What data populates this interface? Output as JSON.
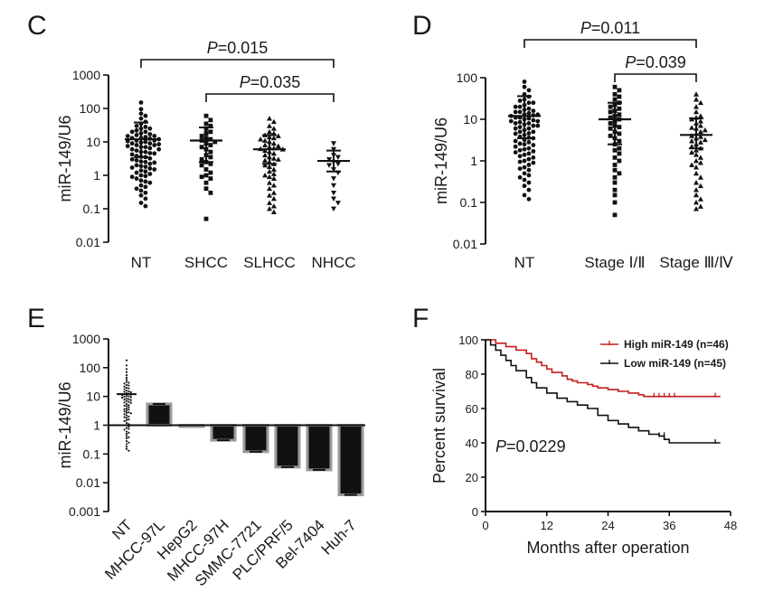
{
  "chart_data": [
    {
      "panel": "C",
      "type": "scatter",
      "ylabel": "miR-149/U6",
      "yscale": "log",
      "ylim": [
        0.01,
        1000
      ],
      "yticks": [
        "0.01",
        "0.1",
        "1",
        "10",
        "100",
        "1000"
      ],
      "categories": [
        "NT",
        "SHCC",
        "SLHCC",
        "NHCC"
      ],
      "marker_shapes": [
        "circle",
        "square",
        "triangle-up",
        "triangle-down"
      ],
      "means": [
        12,
        11,
        6,
        2.7
      ],
      "sd_upper": [
        38,
        27,
        16,
        5.5
      ],
      "sd_lower": [
        3.5,
        2.5,
        2.2,
        1.3
      ],
      "points": [
        [
          150,
          95,
          70,
          60,
          50,
          40,
          35,
          30,
          28,
          25,
          22,
          20,
          18,
          17,
          16,
          15,
          14,
          13,
          12.5,
          12,
          11,
          10.5,
          10,
          9.5,
          9,
          8.5,
          8,
          7.5,
          7,
          6.5,
          6,
          5.5,
          5,
          4.6,
          4.2,
          3.8,
          3.5,
          3.2,
          3,
          2.8,
          2.6,
          2.4,
          2.2,
          2,
          1.8,
          1.6,
          1.5,
          1.4,
          1.3,
          1.2,
          1.1,
          1,
          0.9,
          0.8,
          0.7,
          0.6,
          0.5,
          0.4,
          0.3,
          0.25,
          0.2,
          0.15,
          0.12,
          25,
          20,
          15,
          13,
          11,
          9,
          8,
          7,
          6,
          5,
          4.5,
          3.6,
          2.5,
          1.9,
          1.7,
          0.95,
          0.65,
          0.45,
          0.35
        ],
        [
          60,
          45,
          35,
          30,
          25,
          20,
          18,
          15,
          13,
          12,
          10,
          9,
          8,
          6,
          5,
          4,
          3.5,
          3,
          2.5,
          2,
          1.5,
          1.2,
          1,
          0.8,
          0.6,
          0.4,
          0.3,
          0.05,
          11,
          7,
          2.2,
          0.9
        ],
        [
          50,
          40,
          30,
          25,
          20,
          18,
          15,
          14,
          13,
          12,
          11,
          10,
          9,
          8,
          7.5,
          7,
          6.5,
          6,
          5.5,
          5,
          4.5,
          4,
          3.5,
          3,
          2.8,
          2.5,
          2.2,
          2,
          1.8,
          1.5,
          1.3,
          1.1,
          1,
          0.9,
          0.8,
          0.6,
          0.5,
          0.4,
          0.3,
          0.25,
          0.2,
          0.15,
          0.12,
          0.1,
          0.08,
          16,
          6.2,
          3.2
        ],
        [
          9,
          6,
          4,
          3.5,
          3,
          2.5,
          2.2,
          2,
          1.5,
          1.2,
          0.8,
          0.5,
          0.3,
          0.2,
          0.15,
          0.1
        ]
      ],
      "annotations": [
        {
          "text_prefix": "P",
          "text_value": "=0.015",
          "between": [
            "NT",
            "NHCC"
          ]
        },
        {
          "text_prefix": "P",
          "text_value": "=0.035",
          "between": [
            "SHCC",
            "NHCC"
          ]
        }
      ]
    },
    {
      "panel": "D",
      "type": "scatter",
      "ylabel": "miR-149/U6",
      "yscale": "log",
      "ylim": [
        0.01,
        100
      ],
      "yticks": [
        "0.01",
        "0.1",
        "1",
        "10",
        "100"
      ],
      "categories": [
        "NT",
        "Stage  Ⅰ/Ⅱ",
        "Stage Ⅲ/Ⅳ"
      ],
      "marker_shapes": [
        "circle",
        "square",
        "triangle-up"
      ],
      "means": [
        12,
        10,
        4.2
      ],
      "sd_upper": [
        36,
        25,
        10.5
      ],
      "sd_lower": [
        3.5,
        2.5,
        2
      ],
      "points": [
        [
          80,
          60,
          50,
          40,
          35,
          30,
          28,
          25,
          22,
          20,
          18,
          17,
          16,
          15,
          14,
          13,
          12.5,
          12,
          11,
          10.5,
          10,
          9.5,
          9,
          8.5,
          8,
          7.5,
          7,
          6.5,
          6,
          5.5,
          5,
          4.6,
          4.2,
          3.8,
          3.5,
          3.2,
          3,
          2.8,
          2.6,
          2.4,
          2.2,
          2,
          1.8,
          1.6,
          1.5,
          1.4,
          1.3,
          1.2,
          1.1,
          1,
          0.9,
          0.8,
          0.7,
          0.6,
          0.5,
          0.4,
          0.3,
          0.25,
          0.2,
          0.15,
          0.12,
          25,
          20,
          15,
          13,
          11,
          9,
          8,
          7,
          6,
          5,
          4.5,
          3.6,
          2.5,
          1.9,
          1.7,
          0.95,
          0.65,
          0.45,
          0.35
        ],
        [
          60,
          50,
          40,
          35,
          30,
          25,
          22,
          20,
          18,
          15,
          13,
          12,
          11,
          10,
          9,
          8,
          7,
          6,
          5,
          4.5,
          4,
          3.5,
          3,
          2.5,
          2,
          1.8,
          1.5,
          1.2,
          1,
          0.8,
          0.6,
          0.5,
          0.4,
          0.3,
          0.2,
          0.15,
          0.1,
          0.05,
          16,
          6.5
        ],
        [
          40,
          30,
          25,
          20,
          15,
          12,
          10,
          9,
          8,
          7,
          6,
          5.5,
          5,
          4.5,
          4,
          3.5,
          3.2,
          3,
          2.8,
          2.5,
          2.2,
          2,
          1.8,
          1.6,
          1.4,
          1.2,
          1,
          0.9,
          0.8,
          0.7,
          0.5,
          0.4,
          0.3,
          0.25,
          0.2,
          0.15,
          0.12,
          0.1,
          0.08,
          0.07,
          11,
          6.3,
          3.8
        ]
      ],
      "annotations": [
        {
          "text_prefix": "P",
          "text_value": "=0.011",
          "between": [
            "NT",
            "Stage Ⅲ/Ⅳ"
          ]
        },
        {
          "text_prefix": "P",
          "text_value": "=0.039",
          "between": [
            "Stage  Ⅰ/Ⅱ",
            "Stage Ⅲ/Ⅳ"
          ]
        }
      ]
    },
    {
      "panel": "E",
      "type": "bar",
      "ylabel": "miR-149/U6",
      "yscale": "log",
      "ylim": [
        0.001,
        1000
      ],
      "yticks": [
        "0.001",
        "0.01",
        "0.1",
        "1",
        "10",
        "100",
        "1000"
      ],
      "baseline": 1,
      "categories": [
        "NT",
        "MHCC-97L",
        "HepG2",
        "MHCC-97H",
        "SMMC-7721",
        "PLC/PRF/5",
        "Bel-7404",
        "Huh-7"
      ],
      "nt_mean": 12,
      "nt_points": [
        180,
        120,
        90,
        70,
        55,
        45,
        38,
        32,
        28,
        25,
        22,
        20,
        18,
        16,
        15,
        14,
        13,
        12,
        11.5,
        11,
        10.5,
        10,
        9.5,
        9,
        8.5,
        8,
        7.5,
        7,
        6.5,
        6,
        5.5,
        5,
        4.6,
        4.2,
        3.8,
        3.5,
        3.2,
        3,
        2.8,
        2.6,
        2.4,
        2.2,
        2,
        1.8,
        1.6,
        1.4,
        1.2,
        1,
        0.9,
        0.8,
        0.7,
        0.6,
        0.5,
        0.42,
        0.35,
        0.28,
        0.22,
        0.18,
        0.15,
        0.13,
        30,
        24,
        19,
        14.5,
        12.5,
        9.8,
        7.8,
        6.2,
        4.8,
        3.6,
        2.7,
        1.9,
        1.5,
        1.1,
        0.75,
        0.55,
        0.38,
        0.25
      ],
      "values": [
        null,
        5.5,
        1.0,
        0.3,
        0.12,
        0.035,
        0.028,
        0.0038
      ]
    },
    {
      "panel": "F",
      "type": "line",
      "xlabel": "Months after operation",
      "ylabel": "Percent survival",
      "xlim": [
        0,
        48
      ],
      "ylim": [
        0,
        100
      ],
      "xticks": [
        "0",
        "12",
        "24",
        "36",
        "48"
      ],
      "yticks": [
        "0",
        "20",
        "40",
        "60",
        "80",
        "100"
      ],
      "legend_position": "top-right",
      "pvalue_prefix": "P",
      "pvalue_value": "=0.0229",
      "series": [
        {
          "name": "High miR-149 (n=46)",
          "color": "#c41e1e",
          "x": [
            0,
            2,
            4,
            6,
            8,
            9,
            10,
            11,
            12,
            13,
            15,
            16,
            17,
            18,
            20,
            21,
            22,
            24,
            26,
            28,
            30,
            31,
            46
          ],
          "y": [
            100,
            98,
            96,
            94,
            92,
            89,
            87,
            85,
            83,
            81,
            79,
            77,
            76,
            75,
            74,
            73,
            72,
            71,
            70,
            69,
            68,
            67,
            67
          ],
          "censor_x": [
            33,
            34,
            35,
            36,
            37,
            45
          ],
          "censor_y": [
            67,
            67,
            67,
            67,
            67,
            67
          ]
        },
        {
          "name": "Low  miR-149 (n=45)",
          "color": "#111111",
          "x": [
            0,
            1,
            2,
            3,
            4,
            5,
            6,
            8,
            9,
            10,
            12,
            14,
            16,
            18,
            20,
            22,
            24,
            26,
            28,
            30,
            32,
            34,
            35,
            36,
            46
          ],
          "y": [
            100,
            97,
            94,
            91,
            88,
            85,
            82,
            78,
            75,
            72,
            69,
            66,
            64,
            62,
            60,
            56,
            53,
            51,
            49,
            47,
            45,
            44,
            42,
            40,
            40
          ],
          "censor_x": [
            34,
            35,
            45
          ],
          "censor_y": [
            44,
            44,
            40
          ]
        }
      ]
    }
  ],
  "panels": {
    "c": {
      "label": "C"
    },
    "d": {
      "label": "D"
    },
    "e": {
      "label": "E"
    },
    "f": {
      "label": "F"
    }
  }
}
